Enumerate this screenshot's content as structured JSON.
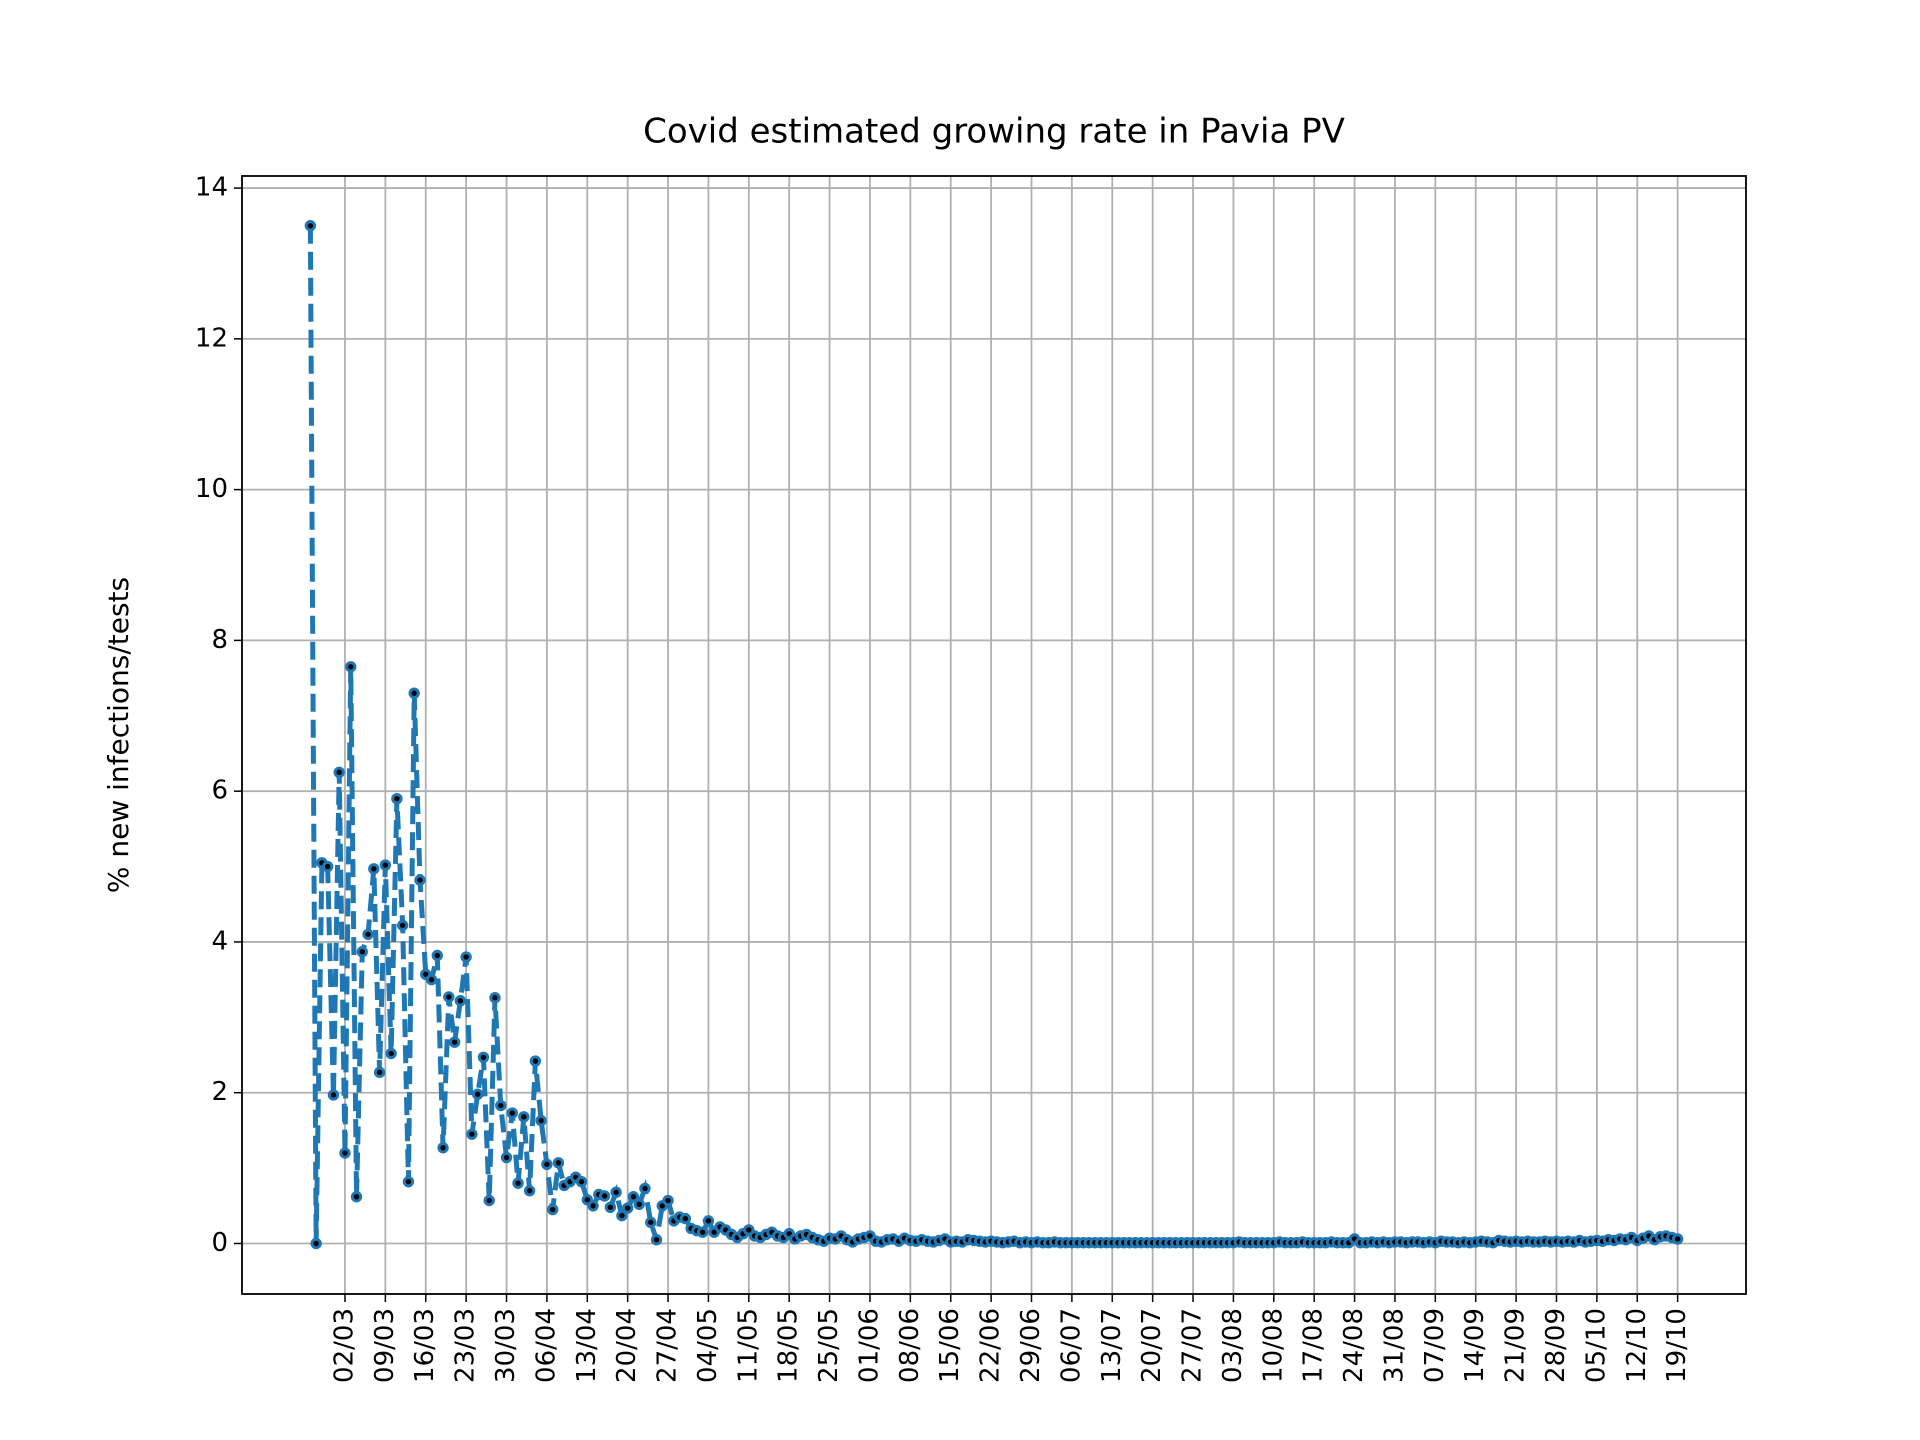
{
  "chart_data": {
    "type": "line",
    "title": "Covid estimated growing rate in Pavia PV",
    "y_label": "% new infections/tests",
    "categories": [
      null,
      null,
      null,
      null,
      null,
      null,
      "02/03",
      null,
      null,
      null,
      null,
      null,
      null,
      "09/03",
      null,
      null,
      null,
      null,
      null,
      null,
      "16/03",
      null,
      null,
      null,
      null,
      null,
      null,
      "23/03",
      null,
      null,
      null,
      null,
      null,
      null,
      "30/03",
      null,
      null,
      null,
      null,
      null,
      null,
      "06/04",
      null,
      null,
      null,
      null,
      null,
      null,
      "13/04",
      null,
      null,
      null,
      null,
      null,
      null,
      "20/04",
      null,
      null,
      null,
      null,
      null,
      null,
      "27/04",
      null,
      null,
      null,
      null,
      null,
      null,
      "04/05",
      null,
      null,
      null,
      null,
      null,
      null,
      "11/05",
      null,
      null,
      null,
      null,
      null,
      null,
      "18/05",
      null,
      null,
      null,
      null,
      null,
      null,
      "25/05",
      null,
      null,
      null,
      null,
      null,
      null,
      "01/06",
      null,
      null,
      null,
      null,
      null,
      null,
      "08/06",
      null,
      null,
      null,
      null,
      null,
      null,
      "15/06",
      null,
      null,
      null,
      null,
      null,
      null,
      "22/06",
      null,
      null,
      null,
      null,
      null,
      null,
      "29/06",
      null,
      null,
      null,
      null,
      null,
      null,
      "06/07",
      null,
      null,
      null,
      null,
      null,
      null,
      "13/07",
      null,
      null,
      null,
      null,
      null,
      null,
      "20/07",
      null,
      null,
      null,
      null,
      null,
      null,
      "27/07",
      null,
      null,
      null,
      null,
      null,
      null,
      "03/08",
      null,
      null,
      null,
      null,
      null,
      null,
      "10/08",
      null,
      null,
      null,
      null,
      null,
      null,
      "17/08",
      null,
      null,
      null,
      null,
      null,
      null,
      "24/08",
      null,
      null,
      null,
      null,
      null,
      null,
      "31/08",
      null,
      null,
      null,
      null,
      null,
      null,
      "07/09",
      null,
      null,
      null,
      null,
      null,
      null,
      "14/09",
      null,
      null,
      null,
      null,
      null,
      null,
      "21/09",
      null,
      null,
      null,
      null,
      null,
      null,
      "28/09",
      null,
      null,
      null,
      null,
      null,
      null,
      "05/10",
      null,
      null,
      null,
      null,
      null,
      null,
      "12/10",
      null,
      null,
      null,
      null,
      null,
      null,
      "19/10"
    ],
    "values": [
      13.5,
      0,
      5.05,
      5.0,
      1.97,
      6.25,
      1.2,
      7.65,
      0.62,
      3.87,
      4.1,
      4.97,
      2.27,
      5.02,
      2.52,
      5.9,
      4.22,
      0.82,
      7.3,
      4.82,
      3.57,
      3.5,
      3.82,
      1.27,
      3.27,
      2.67,
      3.22,
      3.8,
      1.45,
      1.98,
      2.47,
      0.57,
      3.26,
      1.83,
      1.14,
      1.73,
      0.8,
      1.68,
      0.7,
      2.42,
      1.63,
      1.05,
      0.45,
      1.07,
      0.77,
      0.82,
      0.88,
      0.82,
      0.58,
      0.5,
      0.65,
      0.63,
      0.48,
      0.68,
      0.37,
      0.47,
      0.62,
      0.52,
      0.73,
      0.28,
      0.05,
      0.5,
      0.57,
      0.3,
      0.35,
      0.33,
      0.2,
      0.17,
      0.15,
      0.3,
      0.15,
      0.22,
      0.18,
      0.12,
      0.08,
      0.13,
      0.18,
      0.1,
      0.08,
      0.12,
      0.15,
      0.1,
      0.08,
      0.13,
      0.06,
      0.1,
      0.12,
      0.08,
      0.05,
      0.03,
      0.07,
      0.06,
      0.1,
      0.05,
      0.02,
      0.06,
      0.08,
      0.1,
      0.03,
      0.02,
      0.05,
      0.06,
      0.03,
      0.07,
      0.04,
      0.03,
      0.05,
      0.03,
      0.02,
      0.04,
      0.06,
      0.02,
      0.03,
      0.02,
      0.05,
      0.04,
      0.03,
      0.02,
      0.03,
      0.02,
      0.01,
      0.02,
      0.03,
      0.01,
      0.02,
      0.01,
      0.02,
      0.01,
      0.01,
      0.02,
      0.01,
      0.01,
      0.01,
      0.01,
      0.01,
      0.01,
      0.01,
      0.01,
      0.01,
      0.01,
      0.01,
      0.01,
      0.01,
      0.01,
      0.01,
      0.01,
      0.01,
      0.01,
      0.01,
      0.01,
      0.01,
      0.01,
      0.01,
      0.01,
      0.01,
      0.01,
      0.01,
      0.01,
      0.01,
      0.01,
      0.01,
      0.02,
      0.01,
      0.01,
      0.01,
      0.01,
      0.01,
      0.01,
      0.02,
      0.01,
      0.01,
      0.01,
      0.02,
      0.01,
      0.01,
      0.01,
      0.01,
      0.02,
      0.01,
      0.01,
      0.01,
      0.06,
      0.01,
      0.01,
      0.02,
      0.01,
      0.02,
      0.01,
      0.02,
      0.02,
      0.01,
      0.02,
      0.02,
      0.01,
      0.02,
      0.01,
      0.03,
      0.02,
      0.02,
      0.01,
      0.02,
      0.01,
      0.02,
      0.03,
      0.02,
      0.01,
      0.04,
      0.03,
      0.02,
      0.03,
      0.02,
      0.03,
      0.02,
      0.02,
      0.03,
      0.02,
      0.03,
      0.02,
      0.03,
      0.02,
      0.04,
      0.02,
      0.03,
      0.04,
      0.03,
      0.05,
      0.04,
      0.06,
      0.05,
      0.08,
      0.04,
      0.07,
      0.1,
      0.05,
      0.09,
      0.1,
      0.08,
      0.06
    ],
    "color": "#1f77b4",
    "marker_face_color": "#000000",
    "linestyle": "dashed",
    "ylim": [
      -0.67,
      14.16
    ],
    "yticks": [
      0,
      2,
      4,
      6,
      8,
      10,
      12,
      14
    ],
    "grid": true
  }
}
